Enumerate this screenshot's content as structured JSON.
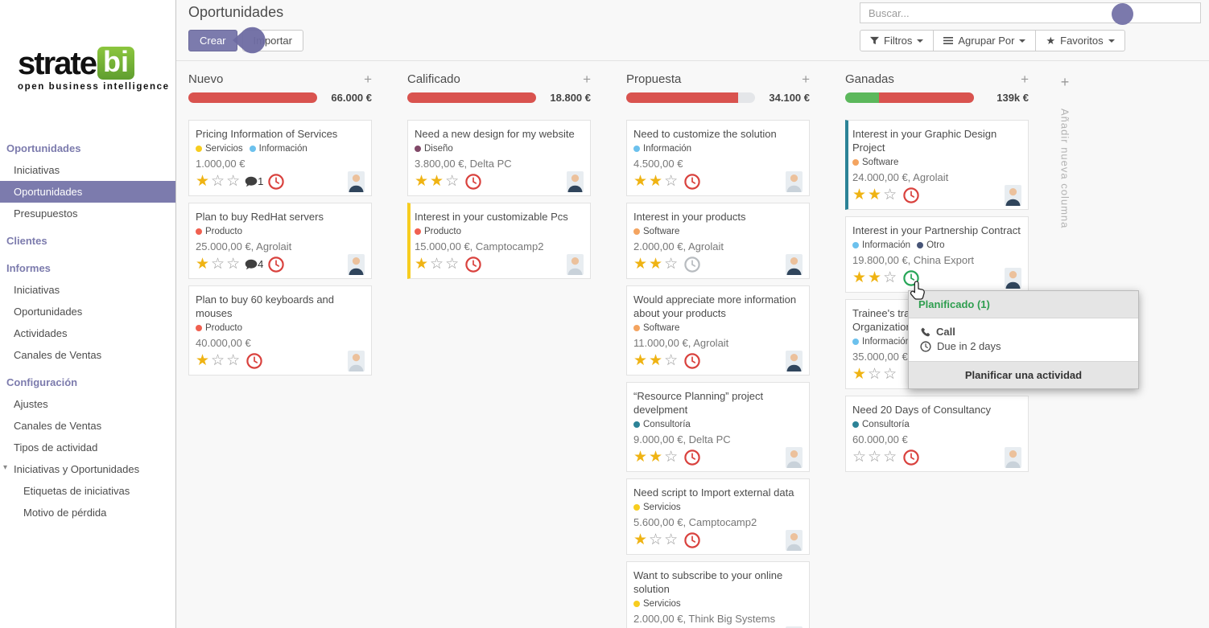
{
  "colors": {
    "accent": "#7c7bad",
    "logo_green": "#76b043",
    "bar_red": "#d9534f",
    "bar_green": "#5cb85c",
    "planned_green": "#2e9e4f"
  },
  "app": {
    "logo": {
      "part1": "strate",
      "part2": "bi",
      "tagline": "open business intelligence"
    }
  },
  "sidebar": {
    "sections": [
      {
        "label": "Oportunidades",
        "items": [
          {
            "label": "Iniciativas"
          },
          {
            "label": "Oportunidades",
            "selected": true
          },
          {
            "label": "Presupuestos"
          }
        ]
      },
      {
        "label": "Clientes",
        "items": []
      },
      {
        "label": "Informes",
        "items": [
          {
            "label": "Iniciativas"
          },
          {
            "label": "Oportunidades"
          },
          {
            "label": "Actividades"
          },
          {
            "label": "Canales de Ventas"
          }
        ]
      },
      {
        "label": "Configuración",
        "items": [
          {
            "label": "Ajustes"
          },
          {
            "label": "Canales de Ventas"
          },
          {
            "label": "Tipos de actividad"
          },
          {
            "label": "Iniciativas y Oportunidades",
            "expandable": true
          },
          {
            "label": "Etiquetas de iniciativas",
            "sub": true
          },
          {
            "label": "Motivo de pérdida",
            "sub": true
          }
        ]
      }
    ]
  },
  "topbar": {
    "title": "Oportunidades",
    "create_label": "Crear",
    "import_label": "Importar",
    "search_placeholder": "Buscar...",
    "filters_label": "Filtros",
    "groupby_label": "Agrupar Por",
    "favorites_label": "Favoritos"
  },
  "board": {
    "add_column_label": "Añadir nueva columna",
    "columns": [
      {
        "name": "Nuevo",
        "amount": "66.000 €",
        "progress": [
          {
            "color": "#d9534f",
            "pct": 100
          }
        ],
        "cards": [
          {
            "title": "Pricing Information of Services",
            "tags": [
              {
                "label": "Servicios",
                "color": "#F7CD1F"
              },
              {
                "label": "Información",
                "color": "#6CC1ED"
              }
            ],
            "amount": "1.000,00 €",
            "stars": 1,
            "messages": "1",
            "clock": "red",
            "avatar": "dark"
          },
          {
            "title": "Plan to buy RedHat servers",
            "tags": [
              {
                "label": "Producto",
                "color": "#F06050"
              }
            ],
            "amount": "25.000,00 €, Agrolait",
            "stars": 1,
            "messages": "4",
            "clock": "red",
            "avatar": "dark"
          },
          {
            "title": "Plan to buy 60 keyboards and mouses",
            "tags": [
              {
                "label": "Producto",
                "color": "#F06050"
              }
            ],
            "amount": "40.000,00 €",
            "stars": 1,
            "clock": "red",
            "avatar": "light"
          }
        ]
      },
      {
        "name": "Calificado",
        "amount": "18.800 €",
        "progress": [
          {
            "color": "#d9534f",
            "pct": 100
          }
        ],
        "cards": [
          {
            "title": "Need a new design for my website",
            "tags": [
              {
                "label": "Diseño",
                "color": "#814968"
              }
            ],
            "amount": "3.800,00 €, Delta PC",
            "stars": 2,
            "clock": "red",
            "avatar": "dark"
          },
          {
            "title": "Interest in your customizable Pcs",
            "tags": [
              {
                "label": "Producto",
                "color": "#F06050"
              }
            ],
            "amount": "15.000,00 €, Camptocamp2",
            "stars": 1,
            "clock": "red",
            "avatar": "light",
            "stripe": "#F7CD1F"
          }
        ]
      },
      {
        "name": "Propuesta",
        "amount": "34.100 €",
        "progress": [
          {
            "color": "#d9534f",
            "pct": 87
          }
        ],
        "cards": [
          {
            "title": "Need to customize the solution",
            "tags": [
              {
                "label": "Información",
                "color": "#6CC1ED"
              }
            ],
            "amount": "4.500,00 €",
            "stars": 2,
            "clock": "red",
            "avatar": "light"
          },
          {
            "title": "Interest in your products",
            "tags": [
              {
                "label": "Software",
                "color": "#F4A460"
              }
            ],
            "amount": "2.000,00 €, Agrolait",
            "stars": 2,
            "clock": "gray",
            "avatar": "dark"
          },
          {
            "title": "Would appreciate more information about your products",
            "tags": [
              {
                "label": "Software",
                "color": "#F4A460"
              }
            ],
            "amount": "11.000,00 €, Agrolait",
            "stars": 2,
            "clock": "red",
            "avatar": "dark"
          },
          {
            "title": "“Resource Planning” project develpment",
            "tags": [
              {
                "label": "Consultoría",
                "color": "#2C8397"
              }
            ],
            "amount": "9.000,00 €, Delta PC",
            "stars": 2,
            "clock": "red",
            "avatar": "light"
          },
          {
            "title": "Need script to Import external data",
            "tags": [
              {
                "label": "Servicios",
                "color": "#F7CD1F"
              }
            ],
            "amount": "5.600,00 €, Camptocamp2",
            "stars": 1,
            "clock": "red",
            "avatar": "light"
          },
          {
            "title": "Want to subscribe to your online solution",
            "tags": [
              {
                "label": "Servicios",
                "color": "#F7CD1F"
              }
            ],
            "amount": "2.000,00 €, Think Big Systems",
            "stars": 0,
            "clock": "red",
            "avatar": "dark"
          }
        ]
      },
      {
        "name": "Ganadas",
        "amount": "139k €",
        "progress": [
          {
            "color": "#5cb85c",
            "pct": 26
          },
          {
            "color": "#d9534f",
            "pct": 74
          }
        ],
        "cards": [
          {
            "title": "Interest in your Graphic Design Project",
            "tags": [
              {
                "label": "Software",
                "color": "#F4A460"
              }
            ],
            "amount": "24.000,00 €, Agrolait",
            "stars": 2,
            "clock": "red",
            "avatar": "dark",
            "stripe": "#2C8397"
          },
          {
            "title": "Interest in your Partnership Contract",
            "tags": [
              {
                "label": "Información",
                "color": "#6CC1ED"
              },
              {
                "label": "Otro",
                "color": "#475577"
              }
            ],
            "amount": "19.800,00 €, China Export",
            "stars": 2,
            "clock": "green",
            "avatar": "dark"
          },
          {
            "title": "Trainee's training\nOrganization",
            "tags": [
              {
                "label": "Información",
                "color": "#6CC1ED"
              }
            ],
            "amount": "35.000,00 €",
            "stars": 1,
            "clock": "none",
            "avatar": "none"
          },
          {
            "title": "Need 20 Days of Consultancy",
            "tags": [
              {
                "label": "Consultoría",
                "color": "#2C8397"
              }
            ],
            "amount": "60.000,00 €",
            "stars": 0,
            "clock": "red",
            "avatar": "light"
          }
        ]
      }
    ]
  },
  "popup": {
    "header": "Planificado (1)",
    "activity": "Call",
    "due": "Due in 2 days",
    "footer": "Planificar una actividad"
  }
}
